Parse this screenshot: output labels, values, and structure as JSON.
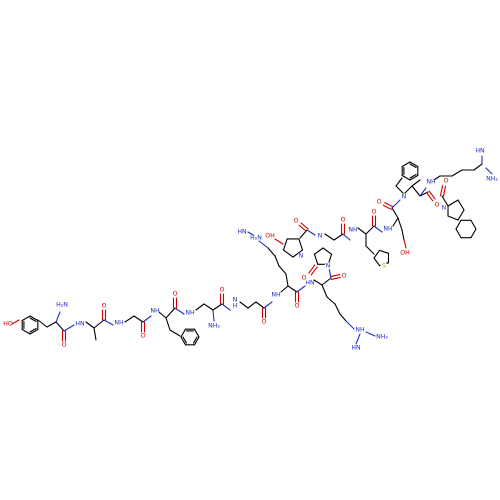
{
  "colors": {
    "carbon_bond": "#000000",
    "oxygen": "#cc0000",
    "nitrogen": "#1f2dbf",
    "sulfur": "#b8a000",
    "background": "#ffffff"
  },
  "labels": {
    "oh": "HO",
    "oh_right": "OH",
    "nh2": "NH₂",
    "h2n": "H₂N",
    "nh": "NH",
    "hn": "HN",
    "n": "N",
    "h": "H",
    "o": "O",
    "s": "S"
  }
}
